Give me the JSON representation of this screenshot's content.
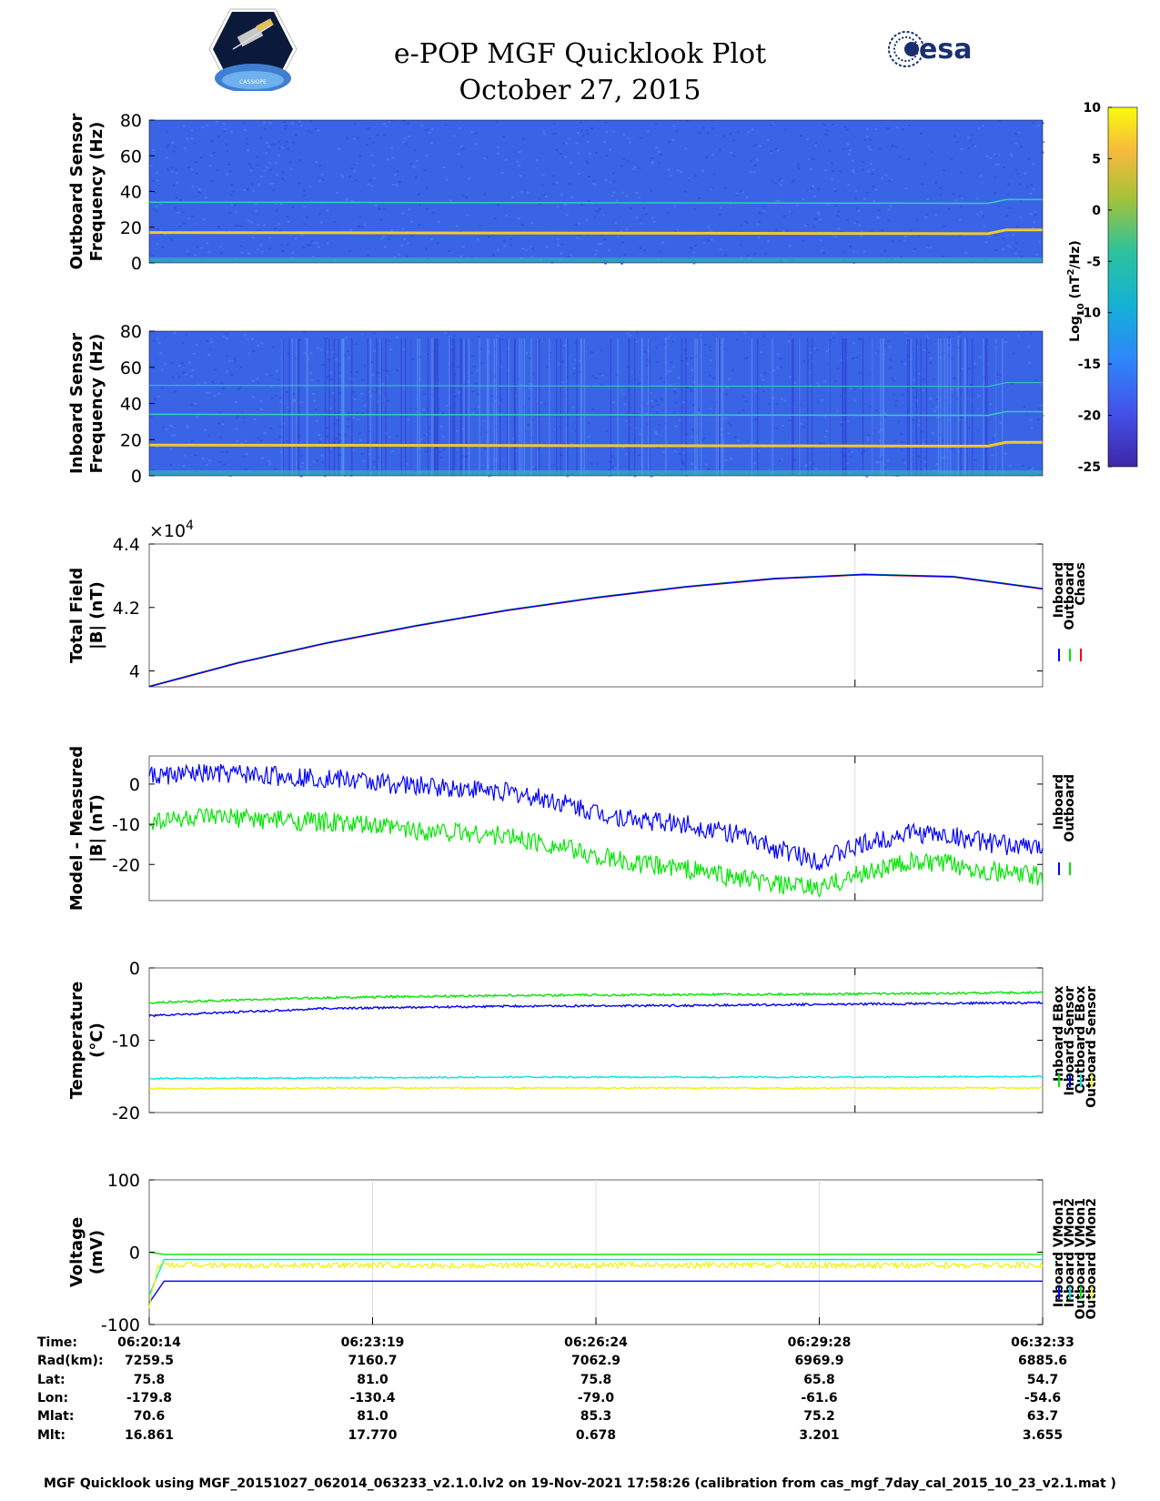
{
  "header": {
    "title_line1": "e-POP MGF Quicklook Plot",
    "title_line2": "October 27, 2015",
    "mission_logo_text": "CASSIOPE",
    "esa_logo_text": "esa"
  },
  "footer": {
    "text": "MGF Quicklook using MGF_20151027_062014_063233_v2.1.0.lv2 on 19-Nov-2021 17:58:26 (calibration from cas_mgf_7day_cal_2015_10_23_v2.1.mat )"
  },
  "colorbar": {
    "label": "Log10 (nT²/Hz)",
    "label_base": "Log",
    "label_sub": "10",
    "label_unit": " (nT",
    "label_sup": "2",
    "label_end": "/Hz)",
    "ticks": [
      "10",
      "5",
      "0",
      "-5",
      "-10",
      "-15",
      "-20",
      "-25"
    ],
    "range": [
      -25,
      10
    ]
  },
  "colors": {
    "inboard": "#0000ff",
    "outboard": "#00e600",
    "chaos": "#ff0000",
    "cyan": "#00e6e6",
    "yellow": "#f2f200",
    "spec_bg": "#3a64e6",
    "spec_bg_dark": "#2f3fcf",
    "line_cyan": "#2fd1b8",
    "line_yellow": "#f0c830"
  },
  "ephemeris": {
    "labels": [
      "Time:",
      "Rad(km):",
      "Lat:",
      "Lon:",
      "Mlat:",
      "Mlt:"
    ],
    "columns": [
      [
        "06:20:14",
        "7259.5",
        "75.8",
        "-179.8",
        "70.6",
        "16.861"
      ],
      [
        "06:23:19",
        "7160.7",
        "81.0",
        "-130.4",
        "81.0",
        "17.770"
      ],
      [
        "06:26:24",
        "7062.9",
        "75.8",
        "-79.0",
        "85.3",
        "0.678"
      ],
      [
        "06:29:28",
        "6969.9",
        "65.8",
        "-61.6",
        "75.2",
        "3.201"
      ],
      [
        "06:32:33",
        "6885.6",
        "54.7",
        "-54.6",
        "63.7",
        "3.655"
      ]
    ]
  },
  "chart_data": [
    {
      "type": "heatmap",
      "id": "outboard-spectrogram",
      "ylabel_line1": "Outboard Sensor",
      "ylabel_line2": "Frequency (Hz)",
      "ylim": [
        0,
        80
      ],
      "yticks": [
        "0",
        "20",
        "40",
        "60",
        "80"
      ],
      "lines_hz": [
        {
          "hz": 17,
          "color": "line_yellow",
          "width": 3
        },
        {
          "hz": 34,
          "color": "line_cyan",
          "width": 1.5
        }
      ]
    },
    {
      "type": "heatmap",
      "id": "inboard-spectrogram",
      "ylabel_line1": "Inboard Sensor",
      "ylabel_line2": "Frequency (Hz)",
      "ylim": [
        0,
        80
      ],
      "yticks": [
        "0",
        "20",
        "40",
        "60",
        "80"
      ],
      "lines_hz": [
        {
          "hz": 17,
          "color": "line_yellow",
          "width": 3
        },
        {
          "hz": 34,
          "color": "line_cyan",
          "width": 1.5
        },
        {
          "hz": 50,
          "color": "line_cyan",
          "width": 1
        }
      ]
    },
    {
      "type": "line",
      "id": "total-field",
      "ylabel_line1": "Total Field",
      "ylabel_line2": "|B| (nT)",
      "ylim": [
        39500,
        44000
      ],
      "yticks": [
        "4",
        "4.2",
        "4.4"
      ],
      "ytick_values": [
        40000,
        42000,
        44000
      ],
      "exponent": "×10",
      "exponent_power": "4",
      "x": [
        0,
        0.1,
        0.2,
        0.3,
        0.4,
        0.5,
        0.6,
        0.7,
        0.8,
        0.9,
        1.0
      ],
      "series": [
        {
          "name": "Chaos",
          "color": "chaos",
          "values": [
            39500,
            40250,
            40880,
            41420,
            41900,
            42300,
            42640,
            42900,
            43030,
            42960,
            42580
          ]
        },
        {
          "name": "Outboard",
          "color": "outboard",
          "values": [
            39520,
            40270,
            40900,
            41440,
            41920,
            42320,
            42660,
            42920,
            43050,
            42980,
            42600
          ]
        },
        {
          "name": "Inboard",
          "color": "inboard",
          "values": [
            39510,
            40260,
            40890,
            41430,
            41910,
            42310,
            42650,
            42910,
            43040,
            42970,
            42590
          ]
        }
      ],
      "legend": [
        "Inboard",
        "Outboard",
        "Chaos"
      ]
    },
    {
      "type": "line",
      "id": "model-measured",
      "ylabel_line1": "Model - Measured",
      "ylabel_line2": "|B| (nT)",
      "ylim": [
        -29,
        7
      ],
      "yticks": [
        "-20",
        "-10",
        "0"
      ],
      "ytick_values": [
        -20,
        -10,
        0
      ],
      "x": [
        0,
        0.05,
        0.1,
        0.15,
        0.2,
        0.25,
        0.3,
        0.35,
        0.4,
        0.45,
        0.5,
        0.55,
        0.6,
        0.65,
        0.7,
        0.75,
        0.8,
        0.85,
        0.9,
        0.95,
        1.0
      ],
      "series": [
        {
          "name": "Inboard",
          "color": "inboard",
          "noise": 2.5,
          "values": [
            2,
            2.5,
            2.5,
            2,
            1.5,
            0.5,
            -0.5,
            -1,
            -2,
            -4,
            -7,
            -9,
            -10,
            -12,
            -16,
            -19,
            -15,
            -12,
            -13,
            -15,
            -16
          ]
        },
        {
          "name": "Outboard",
          "color": "outboard",
          "noise": 2.5,
          "values": [
            -9,
            -8.5,
            -8.5,
            -9,
            -9.5,
            -10.5,
            -11.5,
            -12,
            -13,
            -15,
            -18,
            -20,
            -21,
            -23,
            -25,
            -26,
            -22,
            -19.5,
            -20,
            -22,
            -23
          ]
        }
      ],
      "legend": [
        "Inboard",
        "Outboard"
      ]
    },
    {
      "type": "line",
      "id": "temperature",
      "ylabel_line1": "Temperature",
      "ylabel_line2": "(°C)",
      "ylim": [
        -20,
        0
      ],
      "yticks": [
        "-20",
        "-10",
        "0"
      ],
      "ytick_values": [
        -20,
        -10,
        0
      ],
      "x": [
        0,
        0.2,
        0.4,
        0.6,
        0.8,
        1.0
      ],
      "series": [
        {
          "name": "Inboard EBox",
          "color": "outboard",
          "noise": 0.15,
          "values": [
            -4.8,
            -4.1,
            -3.8,
            -3.7,
            -3.6,
            -3.4
          ]
        },
        {
          "name": "Inboard Sensor",
          "color": "inboard",
          "noise": 0.15,
          "values": [
            -6.6,
            -5.6,
            -5.3,
            -5.2,
            -5.0,
            -4.8
          ]
        },
        {
          "name": "Outboard EBox",
          "color": "cyan",
          "noise": 0.1,
          "values": [
            -15.3,
            -15.2,
            -15.1,
            -15.1,
            -15.1,
            -15.0
          ]
        },
        {
          "name": "Outboard Sensor",
          "color": "yellow",
          "noise": 0.1,
          "values": [
            -16.7,
            -16.6,
            -16.6,
            -16.6,
            -16.6,
            -16.6
          ]
        }
      ],
      "legend": [
        "Inboard EBox",
        "Inboard Sensor",
        "Outboard EBox",
        "Outboard Sensor"
      ]
    },
    {
      "type": "line",
      "id": "voltage",
      "ylabel_line1": "Voltage",
      "ylabel_line2": "(mV)",
      "ylim": [
        -100,
        100
      ],
      "yticks": [
        "-100",
        "0",
        "100"
      ],
      "ytick_values": [
        -100,
        0,
        100
      ],
      "x": [
        0,
        0.01,
        0.02,
        1.0
      ],
      "series": [
        {
          "name": "Inboard VMon1",
          "color": "inboard",
          "noise": 0,
          "values": [
            -70,
            -40,
            -40,
            -40
          ]
        },
        {
          "name": "Inboard VMon2",
          "color": "cyan",
          "noise": 0,
          "values": [
            -60,
            -10,
            -10,
            -10
          ]
        },
        {
          "name": "Outboard VMon1",
          "color": "outboard",
          "noise": 0,
          "values": [
            0,
            -3,
            -3,
            -3
          ]
        },
        {
          "name": "Outboard VMon2",
          "color": "yellow",
          "noise": 4,
          "values": [
            -75,
            -18,
            -18,
            -18
          ]
        }
      ],
      "legend": [
        "Inboard VMon1",
        "Inboard VMon2",
        "Outboard VMon1",
        "Outboard VMon2"
      ]
    }
  ]
}
